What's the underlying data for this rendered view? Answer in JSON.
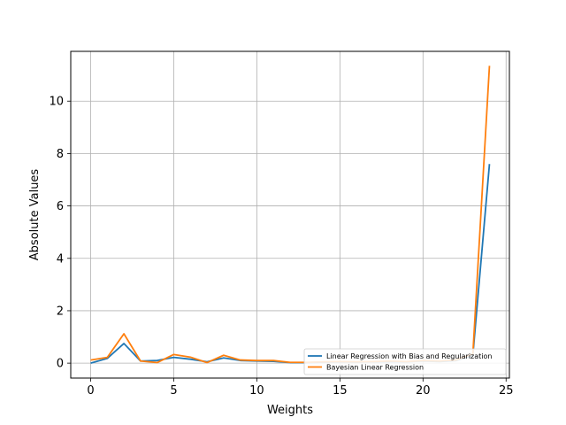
{
  "chart_data": {
    "type": "line",
    "title": "",
    "xlabel": "Weights",
    "ylabel": "Absolute Values",
    "xlim": [
      -1.2,
      25.2
    ],
    "ylim": [
      -0.57,
      11.9
    ],
    "xticks": [
      0,
      5,
      10,
      15,
      20,
      25
    ],
    "yticks": [
      0,
      2,
      4,
      6,
      8,
      10
    ],
    "grid": true,
    "legend_position": "lower-right",
    "x": [
      0,
      1,
      2,
      3,
      4,
      5,
      6,
      7,
      8,
      9,
      10,
      11,
      12,
      13,
      14,
      15,
      16,
      17,
      18,
      19,
      20,
      21,
      22,
      23,
      24
    ],
    "series": [
      {
        "name": "Linear Regression with Bias and Regularization",
        "color": "#1f77b4",
        "values": [
          0.0,
          0.18,
          0.75,
          0.08,
          0.1,
          0.22,
          0.15,
          0.05,
          0.2,
          0.1,
          0.08,
          0.07,
          0.02,
          0.02,
          0.04,
          0.05,
          0.04,
          0.05,
          0.06,
          0.05,
          0.08,
          0.06,
          0.1,
          0.3,
          7.6
        ]
      },
      {
        "name": "Bayesian Linear Regression",
        "color": "#ff7f0e",
        "values": [
          0.12,
          0.22,
          1.12,
          0.08,
          0.02,
          0.33,
          0.23,
          0.02,
          0.3,
          0.12,
          0.1,
          0.1,
          0.03,
          0.03,
          0.05,
          0.06,
          0.05,
          0.06,
          0.08,
          0.06,
          0.1,
          0.08,
          0.12,
          0.35,
          11.35
        ]
      }
    ]
  }
}
